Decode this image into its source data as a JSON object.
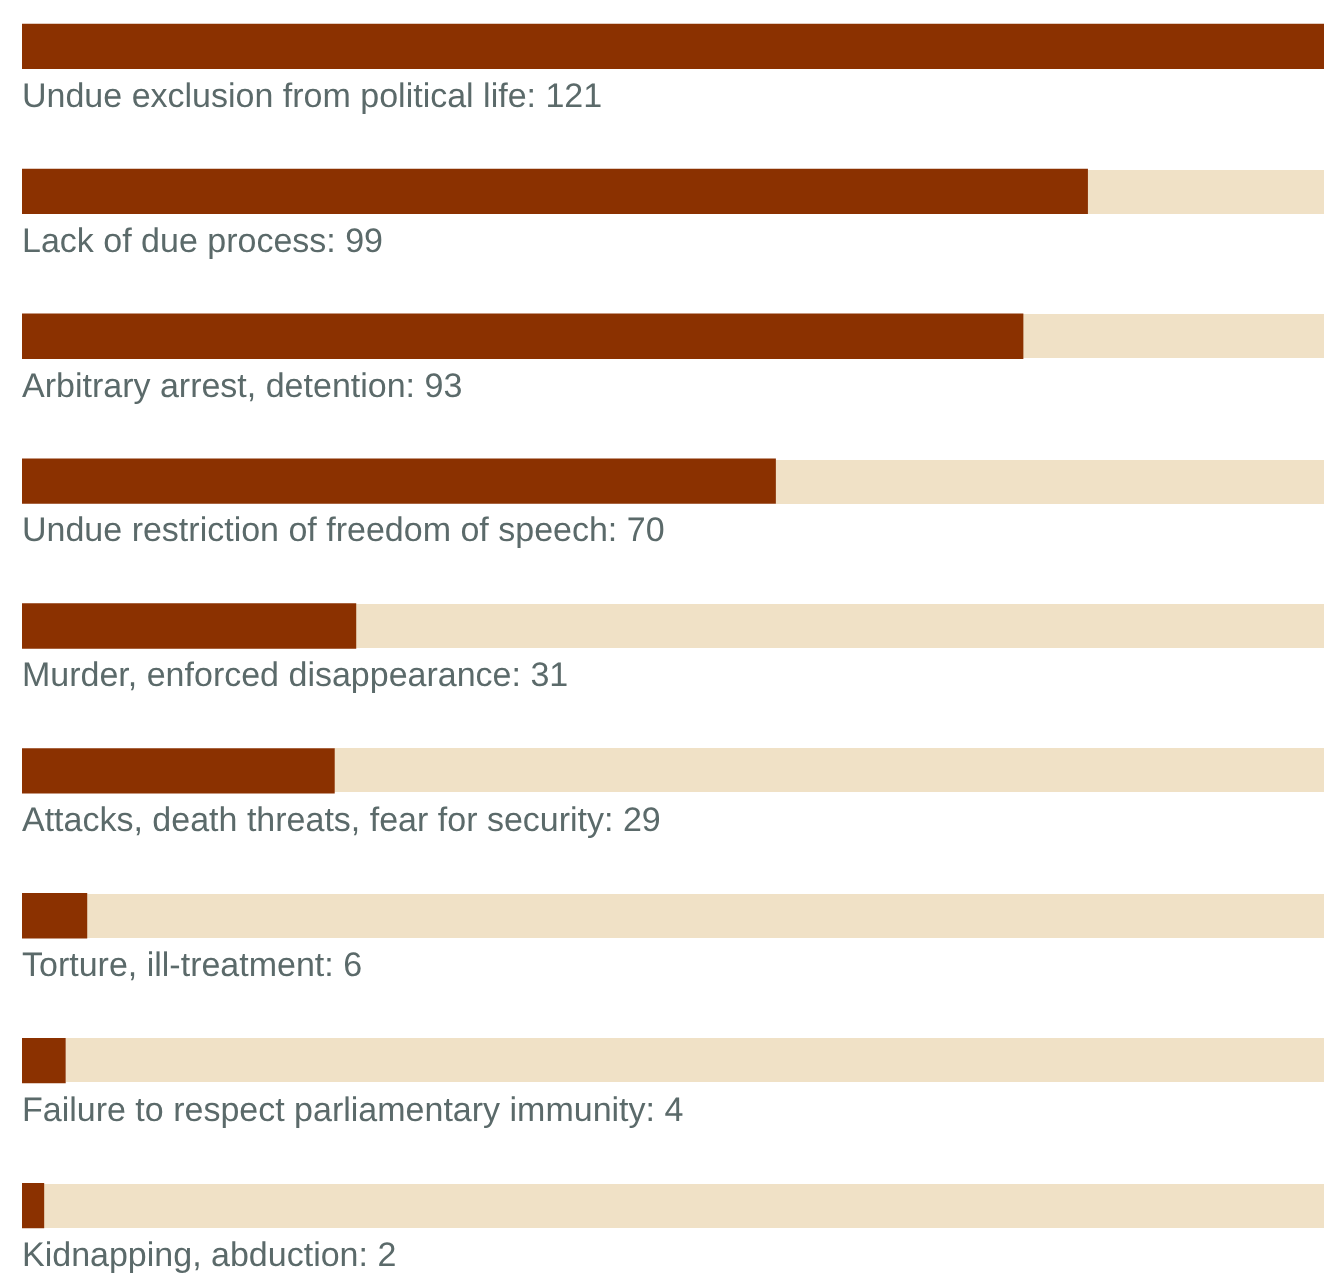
{
  "chart_data": {
    "type": "bar",
    "orientation": "horizontal",
    "categories": [
      null,
      null,
      null,
      null,
      null,
      null,
      null,
      null,
      null
    ],
    "values": [
      121,
      99,
      93,
      70,
      31,
      29,
      6,
      4,
      2
    ],
    "value_labels": [
      "Undue exclusion from political life: 121",
      "Lack of due process: 99",
      "Arbitrary arrest, detention: 93",
      "Undue restriction of freedom of speech: 70",
      "Murder, enforced disappearance: 31",
      "Attacks, death threats, fear for security: 29",
      "Torture, ill-treatment: 6",
      "Failure to respect parliamentary immunity: 4",
      "Kidnapping, abduction: 2"
    ],
    "color": "#8b3100",
    "xlim": [
      0,
      121
    ]
  }
}
